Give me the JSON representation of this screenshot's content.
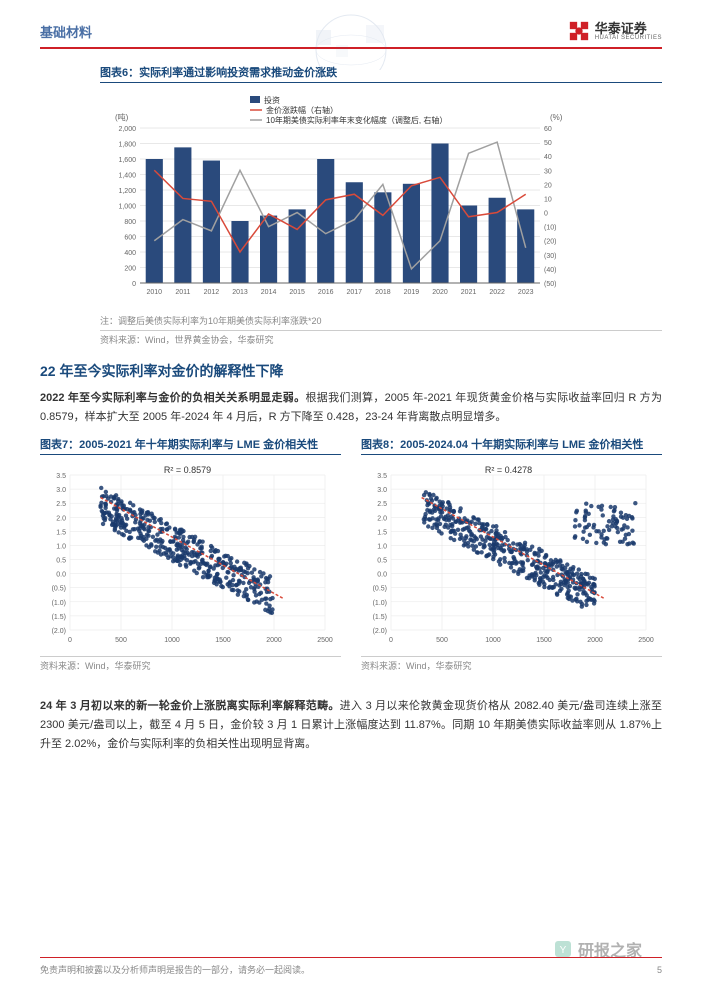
{
  "header": {
    "category": "基础材料",
    "logo_cn": "华泰证券",
    "logo_en": "HUATAI SECURITIES",
    "logo_color": "#cf2027"
  },
  "chart6": {
    "title": "图表6：实际利率通过影响投资需求推动金价涨跌",
    "legend": {
      "bar": "投资",
      "line_red": "金价涨跌幅（右轴）",
      "line_gray": "10年期美债实际利率年末变化幅度（调整后, 右轴）"
    },
    "y1_label": "(吨)",
    "y2_label": "(%)",
    "y1_ticks": [
      0,
      200,
      400,
      600,
      800,
      1000,
      1200,
      1400,
      1600,
      1800,
      2000
    ],
    "y2_ticks": [
      -50,
      -40,
      -30,
      -20,
      -10,
      0,
      10,
      20,
      30,
      40,
      50,
      60
    ],
    "categories": [
      "2010",
      "2011",
      "2012",
      "2013",
      "2014",
      "2015",
      "2016",
      "2017",
      "2018",
      "2019",
      "2020",
      "2021",
      "2022",
      "2023"
    ],
    "bar_values": [
      1600,
      1750,
      1580,
      800,
      870,
      950,
      1600,
      1300,
      1170,
      1280,
      1800,
      1000,
      1100,
      950
    ],
    "line_red_values": [
      30,
      10,
      8,
      -28,
      -1,
      -12,
      9,
      13,
      -2,
      19,
      25,
      -3,
      0,
      13
    ],
    "line_gray_values": [
      -20,
      -5,
      -13,
      30,
      -10,
      0,
      -15,
      -5,
      20,
      -40,
      -20,
      42,
      50,
      -25
    ],
    "bar_color": "#2a4a7c",
    "line_red_color": "#d94a3a",
    "line_gray_color": "#a0a0a0",
    "grid_color": "#d0d0d0",
    "note": "注：调整后美债实际利率为10年期美债实际利率涨跌*20",
    "source": "资料来源：Wind，世界黄金协会，华泰研究"
  },
  "section": {
    "title": "22 年至今实际利率对金价的解释性下降",
    "p1_bold": "2022 年至今实际利率与金价的负相关关系明显走弱。",
    "p1_rest": "根据我们测算，2005 年-2021 年现货黄金价格与实际收益率回归 R 方为 0.8579，样本扩大至 2005 年-2024 年 4 月后，R 方下降至 0.428，23-24 年背离散点明显增多。"
  },
  "chart7": {
    "title": "图表7：2005-2021 年十年期实际利率与 LME 金价相关性",
    "r2_label": "R² = 0.8579",
    "x_ticks": [
      0,
      500,
      1000,
      1500,
      2000,
      2500
    ],
    "y_ticks": [
      "(2.0)",
      "(1.5)",
      "(1.0)",
      "(0.5)",
      "0.0",
      "0.5",
      "1.0",
      "1.5",
      "2.0",
      "2.5",
      "3.0",
      "3.5"
    ],
    "point_color": "#1a3a6c",
    "trend_color": "#d94a3a",
    "source": "资料来源：Wind，华泰研究"
  },
  "chart8": {
    "title": "图表8：2005-2024.04 十年期实际利率与 LME 金价相关性",
    "r2_label": "R² = 0.4278",
    "x_ticks": [
      0,
      500,
      1000,
      1500,
      2000,
      2500
    ],
    "y_ticks": [
      "(2.0)",
      "(1.5)",
      "(1.0)",
      "(0.5)",
      "0.0",
      "0.5",
      "1.0",
      "1.5",
      "2.0",
      "2.5",
      "3.0",
      "3.5"
    ],
    "point_color": "#1a3a6c",
    "trend_color": "#d94a3a",
    "source": "资料来源：Wind，华泰研究"
  },
  "section2": {
    "p_bold": "24 年 3 月初以来的新一轮金价上涨脱离实际利率解释范畴。",
    "p_rest": "进入 3 月以来伦敦黄金现货价格从 2082.40 美元/盎司连续上涨至 2300 美元/盎司以上，截至 4 月 5 日，金价较 3 月 1 日累计上涨幅度达到 11.87%。同期 10 年期美债实际收益率则从 1.87%上升至 2.02%，金价与实际利率的负相关性出现明显背离。"
  },
  "footer": {
    "disclaimer": "免责声明和披露以及分析师声明是报告的一部分，请务必一起阅读。",
    "page_num": "5"
  },
  "watermark": {
    "text": "研报之家",
    "url": "yblook.com"
  }
}
